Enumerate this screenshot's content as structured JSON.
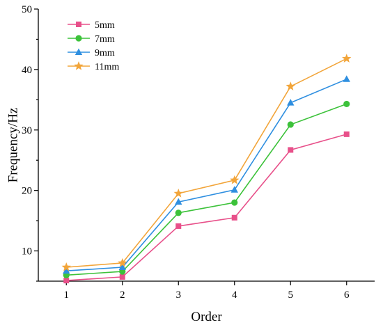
{
  "chart_data": {
    "type": "line",
    "xlabel": "Order",
    "ylabel": "Frequency/Hz",
    "x": [
      1,
      2,
      3,
      4,
      5,
      6
    ],
    "xticks": [
      "1",
      "2",
      "3",
      "4",
      "5",
      "6"
    ],
    "yticks": [
      "10",
      "20",
      "30",
      "40",
      "50"
    ],
    "xlim": [
      0.5,
      6.5
    ],
    "ylim": [
      5,
      50
    ],
    "grid": false,
    "legend_position": "top-left",
    "series": [
      {
        "name": "5mm",
        "color": "#e8508a",
        "marker": "square",
        "values": [
          5.1,
          5.7,
          14.1,
          15.5,
          26.7,
          29.3
        ]
      },
      {
        "name": "7mm",
        "color": "#3cc23a",
        "marker": "circle",
        "values": [
          6.0,
          6.6,
          16.3,
          18.0,
          30.9,
          34.3
        ]
      },
      {
        "name": "9mm",
        "color": "#2f8fe0",
        "marker": "triangle",
        "values": [
          6.7,
          7.3,
          18.1,
          20.1,
          34.5,
          38.4
        ]
      },
      {
        "name": "11mm",
        "color": "#f2a53a",
        "marker": "star",
        "values": [
          7.3,
          8.0,
          19.5,
          21.7,
          37.2,
          41.8
        ]
      }
    ]
  }
}
